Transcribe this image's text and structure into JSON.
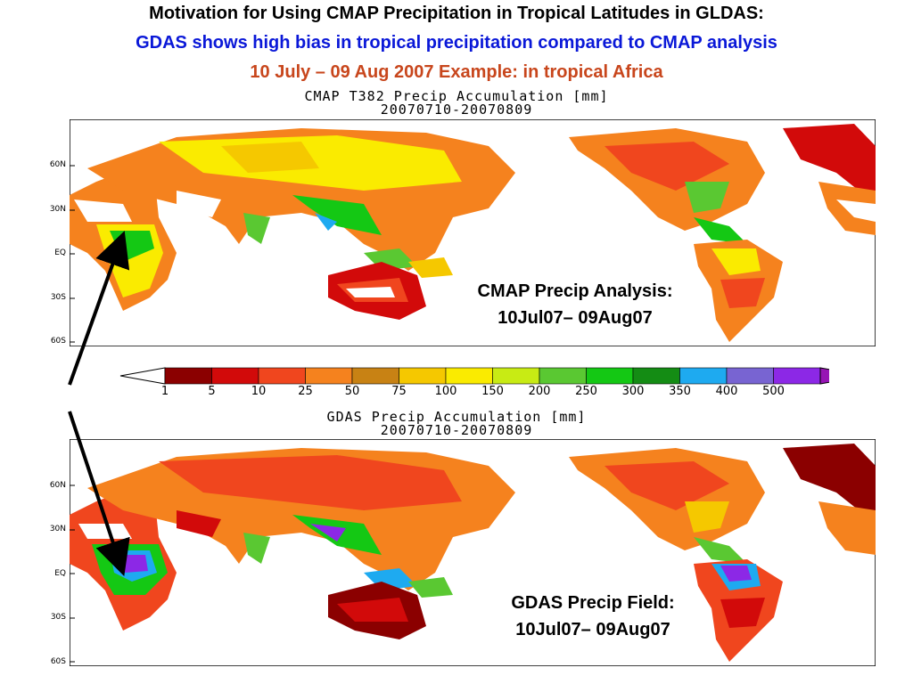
{
  "titles": {
    "line1": "Motivation for Using CMAP Precipitation in Tropical Latitudes in GLDAS:",
    "line2": "GDAS shows high bias in tropical precipitation compared to CMAP analysis",
    "line3": "10 July – 09 Aug 2007 Example: in tropical Africa"
  },
  "maps": {
    "top": {
      "title": "CMAP T382 Precip Accumulation [mm]",
      "dates": "20070710-20070809",
      "annotation_line1": "CMAP Precip Analysis:",
      "annotation_line2": "10Jul07– 09Aug07"
    },
    "bottom": {
      "title": "GDAS Precip Accumulation [mm]",
      "dates": "20070710-20070809",
      "annotation_line1": "GDAS Precip Field:",
      "annotation_line2": "10Jul07– 09Aug07"
    },
    "lat_labels": [
      "60N",
      "30N",
      "EQ",
      "30S",
      "60S"
    ]
  },
  "legend": {
    "ticks": [
      "1",
      "5",
      "10",
      "25",
      "50",
      "75",
      "100",
      "150",
      "200",
      "250",
      "300",
      "350",
      "400",
      "500"
    ],
    "colors": [
      "#8b0000",
      "#d20a0a",
      "#f0461e",
      "#f5821e",
      "#c88214",
      "#f5c800",
      "#faeb00",
      "#c8eb14",
      "#5ac832",
      "#14c814",
      "#148c14",
      "#1eaaf0",
      "#7864d2",
      "#8c28e6"
    ],
    "arrow_color": "#9614b4"
  }
}
